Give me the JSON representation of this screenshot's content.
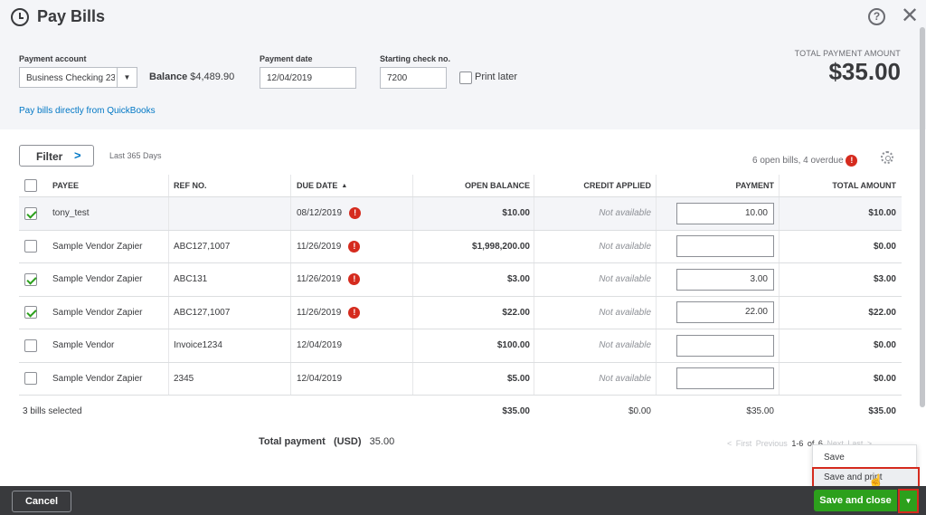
{
  "header": {
    "title": "Pay Bills",
    "help": "?",
    "close": "✕",
    "payment_account_label": "Payment account",
    "payment_account_value": "Business Checking 23",
    "balance_label": "Balance",
    "balance_value": "$4,489.90",
    "payment_date_label": "Payment date",
    "payment_date_value": "12/04/2019",
    "starting_check_label": "Starting check no.",
    "starting_check_value": "7200",
    "print_later_label": "Print later",
    "total_label": "TOTAL PAYMENT AMOUNT",
    "total_value": "$35.00",
    "pay_link": "Pay bills directly from QuickBooks"
  },
  "toolbar": {
    "filter_label": "Filter",
    "filter_range": "Last 365 Days",
    "open_bills": "6 open bills, 4 overdue"
  },
  "table": {
    "columns": {
      "payee": "PAYEE",
      "ref": "REF NO.",
      "due": "DUE DATE",
      "open": "OPEN BALANCE",
      "credit": "CREDIT APPLIED",
      "payment": "PAYMENT",
      "total": "TOTAL AMOUNT"
    },
    "rows": [
      {
        "payee": "tony_test",
        "ref": "",
        "due": "08/12/2019",
        "open": "$10.00",
        "credit": "Not available",
        "payment": "10.00",
        "total": "$10.00"
      },
      {
        "payee": "Sample Vendor Zapier",
        "ref": "ABC127,1007",
        "due": "11/26/2019",
        "open": "$1,998,200.00",
        "credit": "Not available",
        "payment": "",
        "total": "$0.00"
      },
      {
        "payee": "Sample Vendor Zapier",
        "ref": "ABC131",
        "due": "11/26/2019",
        "open": "$3.00",
        "credit": "Not available",
        "payment": "3.00",
        "total": "$3.00"
      },
      {
        "payee": "Sample Vendor Zapier",
        "ref": "ABC127,1007",
        "due": "11/26/2019",
        "open": "$22.00",
        "credit": "Not available",
        "payment": "22.00",
        "total": "$22.00"
      },
      {
        "payee": "Sample Vendor",
        "ref": "Invoice1234",
        "due": "12/04/2019",
        "open": "$100.00",
        "credit": "Not available",
        "payment": "",
        "total": "$0.00"
      },
      {
        "payee": "Sample Vendor Zapier",
        "ref": "2345",
        "due": "12/04/2019",
        "open": "$5.00",
        "credit": "Not available",
        "payment": "",
        "total": "$0.00"
      }
    ],
    "footer": {
      "selected": "3 bills selected",
      "open": "$35.00",
      "credit": "$0.00",
      "payment": "$35.00",
      "total": "$35.00"
    }
  },
  "summary": {
    "total_payment_label": "Total payment",
    "currency": "(USD)",
    "total_payment_value": "35.00"
  },
  "pagination": {
    "first": "< First",
    "previous": "Previous",
    "range": "1-6 of 6",
    "next": "Next",
    "last": "Last >"
  },
  "dropdown": {
    "save": "Save",
    "save_and_print": "Save and print"
  },
  "footer": {
    "cancel": "Cancel",
    "save_and_close": "Save and close",
    "caret": "▼"
  },
  "colors": {
    "accent_green": "#2ca01c",
    "link_blue": "#0077c5",
    "alert_red": "#d52b1e",
    "footer_bg": "#393a3d"
  },
  "icons": {
    "title": "clock-refresh-icon",
    "help": "question-circle-icon",
    "close": "close-icon",
    "gear": "gear-icon",
    "alert": "exclamation-circle-icon",
    "cursor": "hand-pointer-icon"
  }
}
